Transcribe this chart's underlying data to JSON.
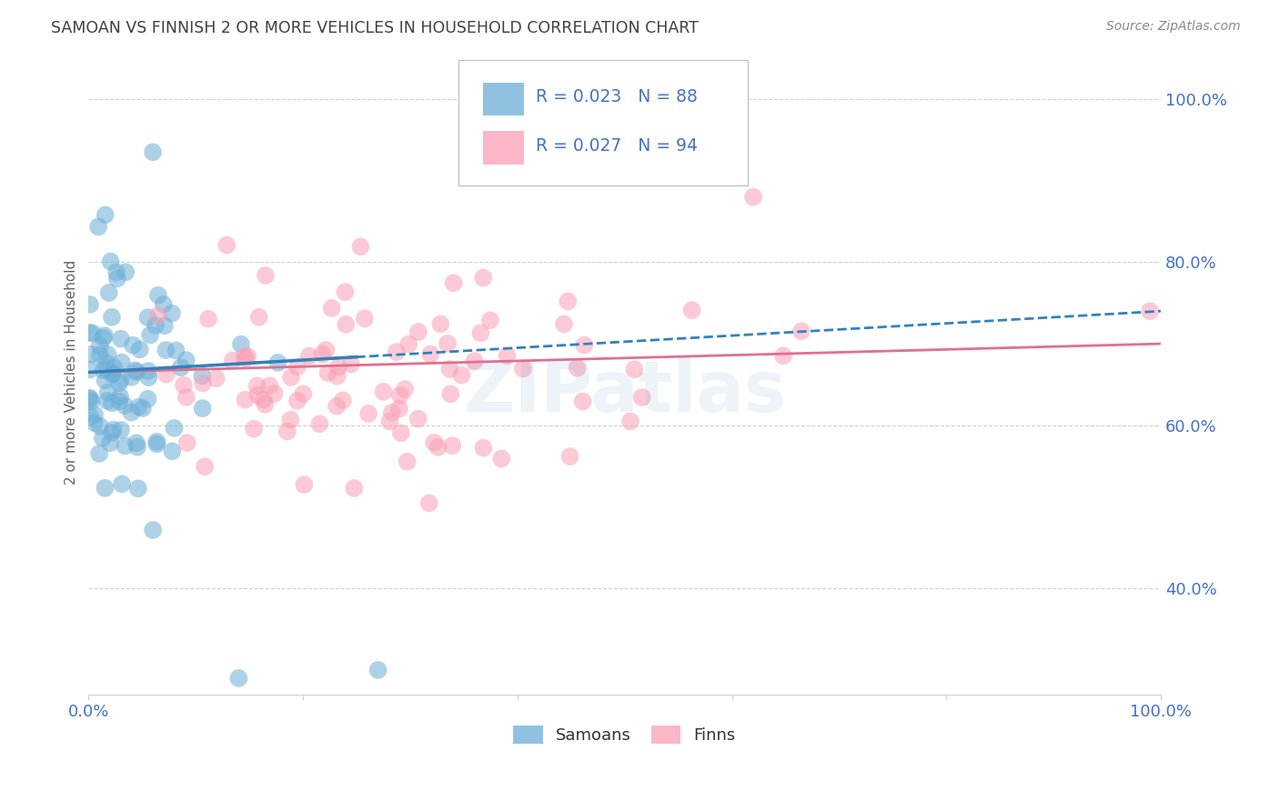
{
  "title": "SAMOAN VS FINNISH 2 OR MORE VEHICLES IN HOUSEHOLD CORRELATION CHART",
  "source": "Source: ZipAtlas.com",
  "ylabel": "2 or more Vehicles in Household",
  "xlim": [
    0.0,
    1.0
  ],
  "ylim": [
    0.27,
    1.06
  ],
  "x_ticks": [
    0.0,
    0.2,
    0.4,
    0.6,
    0.8,
    1.0
  ],
  "x_tick_labels": [
    "0.0%",
    "",
    "",
    "",
    "",
    "100.0%"
  ],
  "y_ticks": [
    0.4,
    0.6,
    0.8,
    1.0
  ],
  "y_tick_labels": [
    "40.0%",
    "60.0%",
    "80.0%",
    "100.0%"
  ],
  "watermark": "ZIPatlas",
  "samoan_color": "#6baed6",
  "finn_color": "#fa9fb5",
  "samoan_line_color": "#3182bd",
  "finn_line_color": "#e07090",
  "tick_color": "#4472c4",
  "background_color": "#ffffff",
  "grid_color": "#d0d0d0",
  "title_color": "#404040",
  "source_color": "#888888",
  "ylabel_color": "#606060",
  "legend_text_color": "#4472c4"
}
